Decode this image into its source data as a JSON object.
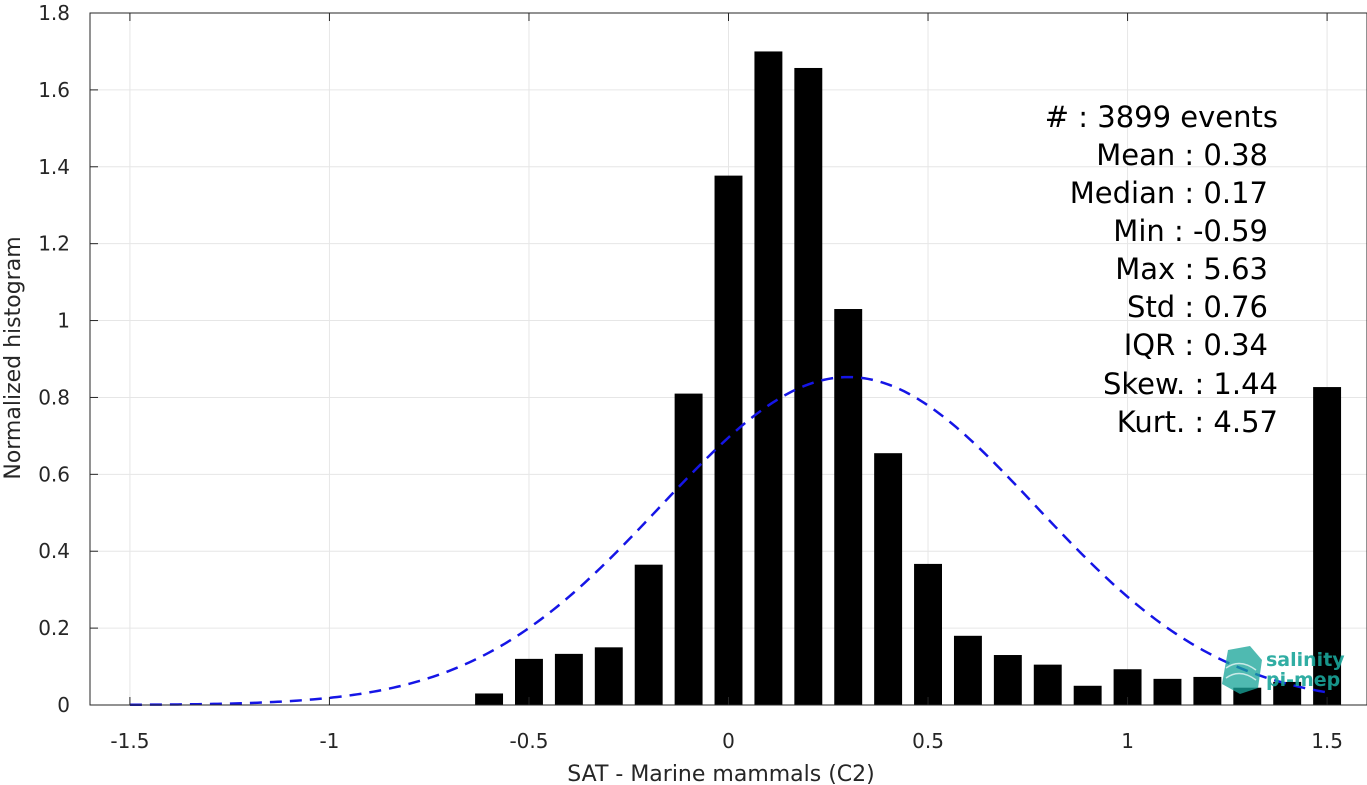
{
  "chart_data": {
    "type": "bar",
    "title": "",
    "xlabel": "SAT - Marine mammals (C2)",
    "ylabel": "Normalized histogram",
    "xlim": [
      -1.6,
      1.6
    ],
    "ylim": [
      0,
      1.8
    ],
    "xticks": [
      -1.5,
      -1,
      -0.5,
      0,
      0.5,
      1,
      1.5
    ],
    "xtick_labels": [
      "-1.5",
      "-1",
      "-0.5",
      "0",
      "0.5",
      "1",
      "1.5"
    ],
    "yticks": [
      0,
      0.2,
      0.4,
      0.6,
      0.8,
      1,
      1.2,
      1.4,
      1.6,
      1.8
    ],
    "ytick_labels": [
      "0",
      "0.2",
      "0.4",
      "0.6",
      "0.8",
      "1",
      "1.2",
      "1.4",
      "1.6",
      "1.8"
    ],
    "grid": true,
    "bar_color": "#000000",
    "bar_width": 0.07,
    "bars": {
      "x": [
        -0.6,
        -0.5,
        -0.4,
        -0.3,
        -0.2,
        -0.1,
        0.0,
        0.1,
        0.2,
        0.3,
        0.4,
        0.5,
        0.6,
        0.7,
        0.8,
        0.9,
        1.0,
        1.1,
        1.2,
        1.3,
        1.4,
        1.5
      ],
      "values": [
        0.03,
        0.12,
        0.133,
        0.15,
        0.365,
        0.81,
        1.377,
        1.7,
        1.657,
        1.03,
        0.655,
        0.367,
        0.18,
        0.13,
        0.105,
        0.05,
        0.093,
        0.068,
        0.073,
        0.045,
        0.06,
        0.827
      ]
    },
    "fit_curve": {
      "style": "dashed",
      "color": "#1515e6",
      "mean": 0.3,
      "std": 0.47,
      "peak": 0.853,
      "x_range": [
        -1.5,
        1.5
      ]
    },
    "stats": {
      "count": "#  : 3899 events",
      "mean": "Mean : 0.38",
      "median": "Median : 0.17",
      "min": "Min : -0.59",
      "max": "Max : 5.63",
      "std": "Std : 0.76",
      "iqr": "IQR : 0.34",
      "skew": "Skew. : 1.44",
      "kurt": "Kurt. : 4.57"
    },
    "logo": {
      "line1": "salinity",
      "line2": "pi-mep",
      "color": "#1aa59a"
    }
  }
}
